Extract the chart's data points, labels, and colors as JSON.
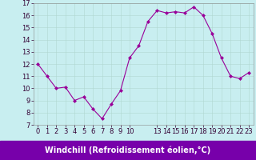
{
  "x": [
    0,
    1,
    2,
    3,
    4,
    5,
    6,
    7,
    8,
    9,
    10,
    11,
    12,
    13,
    14,
    15,
    16,
    17,
    18,
    19,
    20,
    21,
    22,
    23
  ],
  "y": [
    12.0,
    11.0,
    10.0,
    10.1,
    9.0,
    9.3,
    8.3,
    7.5,
    8.7,
    9.8,
    12.5,
    13.5,
    15.5,
    16.4,
    16.2,
    16.3,
    16.2,
    16.7,
    16.0,
    14.5,
    12.5,
    11.0,
    10.8,
    11.3
  ],
  "line_color": "#990099",
  "marker_color": "#990099",
  "bg_color": "#c8eef0",
  "grid_color": "#b0d8d0",
  "xlabel": "Windchill (Refroidissement éolien,°C)",
  "ylim": [
    7,
    17
  ],
  "yticks": [
    7,
    8,
    9,
    10,
    11,
    12,
    13,
    14,
    15,
    16,
    17
  ],
  "xticks": [
    0,
    1,
    2,
    3,
    4,
    5,
    6,
    7,
    8,
    9,
    10,
    13,
    14,
    15,
    16,
    17,
    18,
    19,
    20,
    21,
    22,
    23
  ],
  "xlabel_bg": "#7700aa",
  "xlabel_text_color": "#ffffff",
  "tick_color": "#330033",
  "label_fontsize": 7,
  "tick_fontsize": 6,
  "fig_width": 3.2,
  "fig_height": 2.0,
  "dpi": 100
}
